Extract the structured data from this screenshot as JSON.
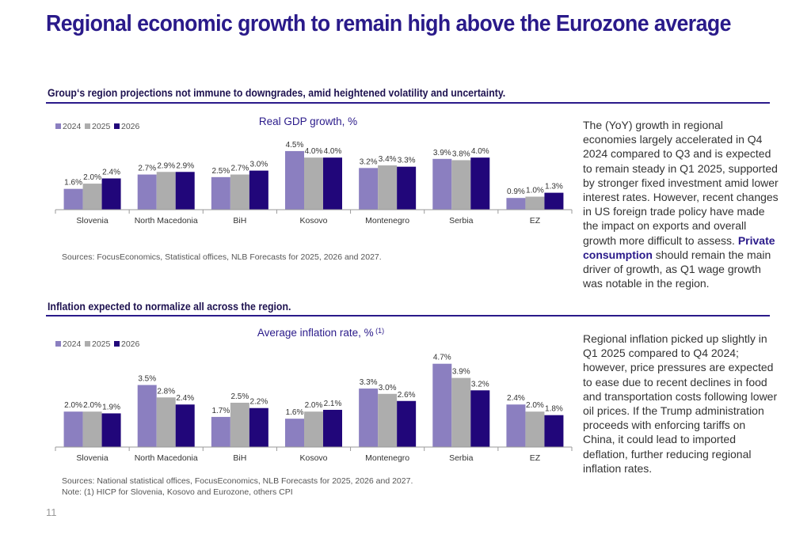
{
  "title": "Regional economic growth to remain high above the Eurozone average",
  "section1": {
    "subtitle": "Group‘s region projections not immune to downgrades, amid heightened volatility and uncertainty.",
    "source": "Sources: FocusEconomics, Statistical offices, NLB Forecasts for 2025, 2026 and 2027.",
    "commentary": {
      "part1": "The (YoY) growth in regional economies largely accelerated in Q4 2024 compared to Q3 and is expected to remain steady in Q1 2025, supported by stronger fixed investment amid lower interest rates. However, recent changes in US foreign trade policy have made the impact on exports and overall growth more difficult to assess.",
      "bold": "Private consumption",
      "part2": " should remain the main driver of growth, as Q1 wage growth was notable in the region."
    }
  },
  "section2": {
    "subtitle": "Inflation expected to normalize all across the region.",
    "source_line1": "Sources: National statistical offices, FocusEconomics, NLB Forecasts for 2025, 2026 and 2027.",
    "source_line2": "Note: (1) HICP for Slovenia, Kosovo and Eurozone, others CPI",
    "commentary": "Regional inflation picked up slightly in Q1 2025 compared to Q4 2024; however, price pressures are expected to ease due to recent declines in food and transportation costs following lower oil prices. If the Trump administration proceeds with enforcing tariffs on China, it could lead to imported deflation, further reducing regional inflation rates."
  },
  "page_number": "11",
  "colors": {
    "2024": "#8b7fc0",
    "2025": "#adadad",
    "2026": "#21067a"
  },
  "chart_data": [
    {
      "type": "bar",
      "title": "Real GDP growth, %",
      "categories": [
        "Slovenia",
        "North Macedonia",
        "BiH",
        "Kosovo",
        "Montenegro",
        "Serbia",
        "EZ"
      ],
      "series": [
        {
          "name": "2024",
          "values": [
            1.6,
            2.7,
            2.5,
            4.5,
            3.2,
            3.9,
            0.9
          ],
          "labels": [
            "1.6%",
            "2.7%",
            "2.5%",
            "4.5%",
            "3.2%",
            "3.9%",
            "0.9%"
          ]
        },
        {
          "name": "2025",
          "values": [
            2.0,
            2.9,
            2.7,
            4.0,
            3.4,
            3.8,
            1.0
          ],
          "labels": [
            "2.0%",
            "2.9%",
            "2.7%",
            "4.0%",
            "3.4%",
            "3.8%",
            "1.0%"
          ]
        },
        {
          "name": "2026",
          "values": [
            2.4,
            2.9,
            3.0,
            4.0,
            3.3,
            4.0,
            1.3
          ],
          "labels": [
            "2.4%",
            "2.9%",
            "3.0%",
            "4.0%",
            "3.3%",
            "4.0%",
            "1.3%"
          ]
        }
      ],
      "ylim": [
        0,
        4.8
      ],
      "legend": "top-left",
      "grid": false
    },
    {
      "type": "bar",
      "title": "Average inflation rate, %",
      "title_note": "(1)",
      "categories": [
        "Slovenia",
        "North Macedonia",
        "BiH",
        "Kosovo",
        "Montenegro",
        "Serbia",
        "EZ"
      ],
      "series": [
        {
          "name": "2024",
          "values": [
            2.0,
            3.5,
            1.7,
            1.6,
            3.3,
            4.7,
            2.4
          ],
          "labels": [
            "2.0%",
            "3.5%",
            "1.7%",
            "1.6%",
            "3.3%",
            "4.7%",
            "2.4%"
          ]
        },
        {
          "name": "2025",
          "values": [
            2.0,
            2.8,
            2.5,
            2.0,
            3.0,
            3.9,
            2.0
          ],
          "labels": [
            "2.0%",
            "2.8%",
            "2.5%",
            "2.0%",
            "3.0%",
            "3.9%",
            "2.0%"
          ]
        },
        {
          "name": "2026",
          "values": [
            1.9,
            2.4,
            2.2,
            2.1,
            2.6,
            3.2,
            1.8
          ],
          "labels": [
            "1.9%",
            "2.4%",
            "2.2%",
            "2.1%",
            "2.6%",
            "3.2%",
            "1.8%"
          ]
        }
      ],
      "ylim": [
        0,
        5.0
      ],
      "legend": "top-left",
      "grid": false
    }
  ]
}
